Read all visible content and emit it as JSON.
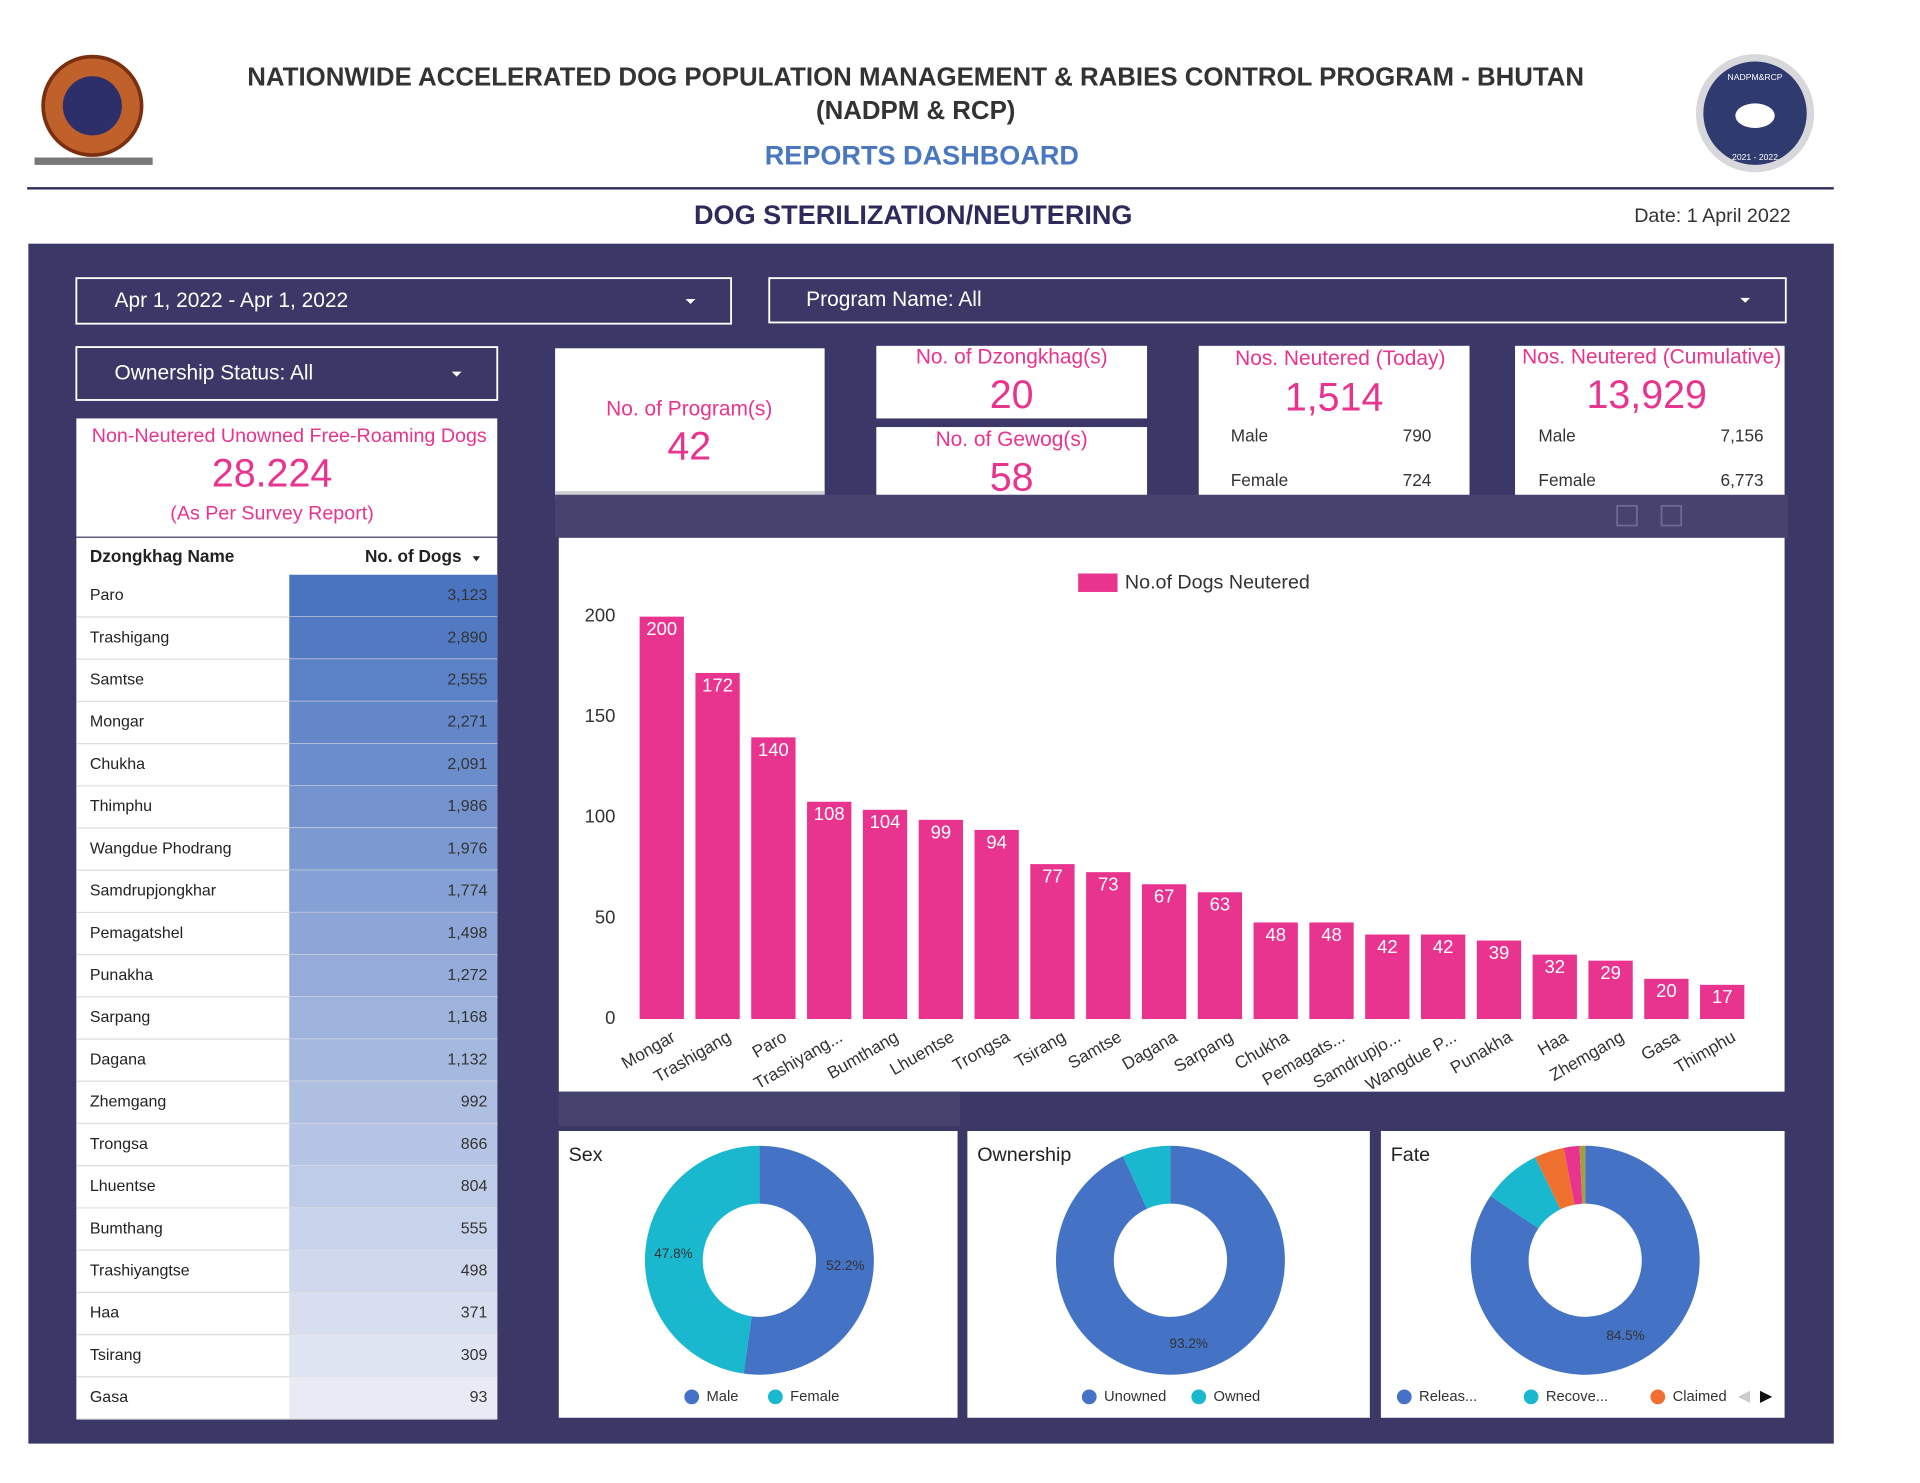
{
  "header": {
    "title": "NATIONWIDE ACCELERATED DOG POPULATION MANAGEMENT & RABIES CONTROL PROGRAM - BHUTAN",
    "subtitle": "(NADPM & RCP)",
    "dashboard": "REPORTS DASHBOARD",
    "section": "DOG STERILIZATION/NEUTERING",
    "date": "Date: 1 April 2022",
    "badge_top": "NADPM&RCP",
    "badge_bottom": "2021 - 2022"
  },
  "filters": {
    "date_range": "Apr 1, 2022 - Apr 1, 2022",
    "program": "Program Name: All",
    "ownership": "Ownership Status: All"
  },
  "survey": {
    "title": "Non-Neutered Unowned Free-Roaming Dogs",
    "value": "28.224",
    "note": "(As Per Survey Report)"
  },
  "kpis": {
    "programs": {
      "label": "No. of Program(s)",
      "value": "42"
    },
    "dzongkhags": {
      "label": "No. of Dzongkhag(s)",
      "value": "20"
    },
    "gewogs": {
      "label": "No. of Gewog(s)",
      "value": "58"
    },
    "today": {
      "label": "Nos. Neutered (Today)",
      "value": "1,514",
      "male_label": "Male",
      "male": "790",
      "female_label": "Female",
      "female": "724"
    },
    "cumulative": {
      "label": "Nos. Neutered (Cumulative)",
      "value": "13,929",
      "male_label": "Male",
      "male": "7,156",
      "female_label": "Female",
      "female": "6,773"
    }
  },
  "table": {
    "columns": [
      "Dzongkhag Name",
      "No. of Dogs"
    ],
    "rows": [
      [
        "Paro",
        "3,123"
      ],
      [
        "Trashigang",
        "2,890"
      ],
      [
        "Samtse",
        "2,555"
      ],
      [
        "Mongar",
        "2,271"
      ],
      [
        "Chukha",
        "2,091"
      ],
      [
        "Thimphu",
        "1,986"
      ],
      [
        "Wangdue Phodrang",
        "1,976"
      ],
      [
        "Samdrupjongkhar",
        "1,774"
      ],
      [
        "Pemagatshel",
        "1,498"
      ],
      [
        "Punakha",
        "1,272"
      ],
      [
        "Sarpang",
        "1,168"
      ],
      [
        "Dagana",
        "1,132"
      ],
      [
        "Zhemgang",
        "992"
      ],
      [
        "Trongsa",
        "866"
      ],
      [
        "Lhuentse",
        "804"
      ],
      [
        "Bumthang",
        "555"
      ],
      [
        "Trashiyangtse",
        "498"
      ],
      [
        "Haa",
        "371"
      ],
      [
        "Tsirang",
        "309"
      ],
      [
        "Gasa",
        "93"
      ]
    ]
  },
  "chart_data": [
    {
      "type": "bar",
      "categories": [
        "Mongar",
        "Trashigang",
        "Paro",
        "Trashiyang...",
        "Bumthang",
        "Lhuentse",
        "Trongsa",
        "Tsirang",
        "Samtse",
        "Dagana",
        "Sarpang",
        "Chukha",
        "Pemagats...",
        "Samdrupjo...",
        "Wangdue P...",
        "Punakha",
        "Haa",
        "Zhemgang",
        "Gasa",
        "Thimphu"
      ],
      "series": [
        {
          "name": "No.of Dogs Neutered",
          "color": "#e8348f",
          "values": [
            200,
            172,
            140,
            108,
            104,
            99,
            94,
            77,
            73,
            67,
            63,
            48,
            48,
            42,
            42,
            39,
            32,
            29,
            20,
            17
          ]
        }
      ],
      "ylim": [
        0,
        210
      ],
      "yticks": [
        0,
        50,
        100,
        150,
        200
      ],
      "grid": false
    },
    {
      "type": "pie",
      "title": "Sex",
      "categories": [
        "Male",
        "Female"
      ],
      "values": [
        52.2,
        47.8
      ],
      "value_labels": [
        "52.2%",
        "47.8%"
      ],
      "colors": [
        "#4472c4",
        "#1ab8cf"
      ]
    },
    {
      "type": "pie",
      "title": "Ownership",
      "categories": [
        "Unowned",
        "Owned"
      ],
      "values": [
        93.2,
        6.8
      ],
      "value_labels": [
        "93.2%",
        null
      ],
      "colors": [
        "#4472c4",
        "#1ab8cf"
      ]
    },
    {
      "type": "pie",
      "title": "Fate",
      "categories": [
        "Releas...",
        "Recove...",
        "Claimed",
        null,
        null
      ],
      "values": [
        84.5,
        8.3,
        4.2,
        2.2,
        0.8
      ],
      "value_labels": [
        "84.5%",
        null,
        null,
        null,
        null
      ],
      "colors": [
        "#4472c4",
        "#1ab8cf",
        "#f07030",
        "#e8348f",
        "#a3a03a"
      ]
    }
  ]
}
